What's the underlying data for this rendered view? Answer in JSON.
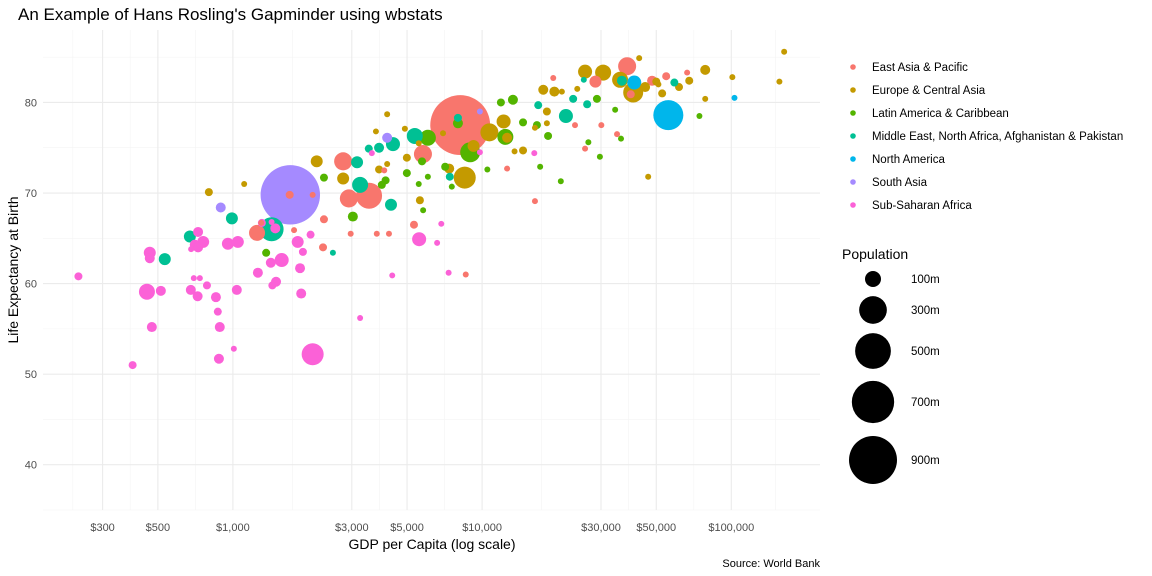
{
  "chart_data": {
    "type": "scatter",
    "title": "An Example of Hans Rosling's Gapminder using wbstats",
    "xlabel": "GDP per Capita (log scale)",
    "ylabel": "Life Expectancy at Birth",
    "caption": "Source: World Bank",
    "x_scale": "log",
    "xlim": [
      173,
      227000
    ],
    "ylim": [
      35,
      88
    ],
    "x_ticks": [
      300,
      500,
      1000,
      3000,
      5000,
      10000,
      30000,
      50000,
      100000
    ],
    "x_tick_labels": [
      "$300",
      "$500",
      "$1,000",
      "$3,000",
      "$5,000",
      "$10,000",
      "$30,000",
      "$50,000",
      "$100,000"
    ],
    "y_ticks": [
      40,
      50,
      60,
      70,
      80
    ],
    "y_tick_labels": [
      "40",
      "50",
      "60",
      "70",
      "80"
    ],
    "grid": true,
    "legend_position": "right",
    "color_legend": {
      "regions": [
        {
          "name": "East Asia & Pacific",
          "color": "#F8766D"
        },
        {
          "name": "Europe & Central Asia",
          "color": "#C49A00"
        },
        {
          "name": "Latin America & Caribbean",
          "color": "#53B400"
        },
        {
          "name": "Middle East, North Africa, Afghanistan & Pakistan",
          "color": "#00C094"
        },
        {
          "name": "North America",
          "color": "#00B6EB"
        },
        {
          "name": "South Asia",
          "color": "#A58AFF"
        },
        {
          "name": "Sub-Saharan Africa",
          "color": "#FB61D7"
        }
      ]
    },
    "size_legend": {
      "title": "Population",
      "values_m": [
        100,
        300,
        500,
        700,
        900
      ],
      "labels": [
        "100m",
        "300m",
        "500m",
        "700m",
        "900m"
      ]
    },
    "series": [
      {
        "name": "Sub-Saharan Africa",
        "points": [
          [
            240,
            60.8,
            25
          ],
          [
            452,
            59.1,
            100
          ],
          [
            514,
            59.2,
            39
          ],
          [
            473,
            55.2,
            39
          ],
          [
            396,
            51.0,
            25
          ],
          [
            464,
            63.4,
            56
          ],
          [
            464,
            62.8,
            39
          ],
          [
            678,
            59.3,
            39
          ],
          [
            722,
            58.6,
            39
          ],
          [
            697,
            60.6,
            14
          ],
          [
            737,
            60.6,
            14
          ],
          [
            787,
            59.8,
            25
          ],
          [
            855,
            58.5,
            39
          ],
          [
            870,
            56.9,
            25
          ],
          [
            879,
            51.7,
            39
          ],
          [
            886,
            55.2,
            39
          ],
          [
            1037,
            59.3,
            39
          ],
          [
            1009,
            52.8,
            14
          ],
          [
            703,
            64.3,
            39
          ],
          [
            725,
            64.0,
            39
          ],
          [
            760,
            64.6,
            56
          ],
          [
            725,
            65.7,
            39
          ],
          [
            680,
            63.8,
            14
          ],
          [
            955,
            64.4,
            56
          ],
          [
            1047,
            64.6,
            56
          ],
          [
            1260,
            61.2,
            39
          ],
          [
            1307,
            66.7,
            25
          ],
          [
            1420,
            62.3,
            39
          ],
          [
            1570,
            62.6,
            77
          ],
          [
            1820,
            64.6,
            56
          ],
          [
            1860,
            61.7,
            39
          ],
          [
            1910,
            63.5,
            25
          ],
          [
            2050,
            65.4,
            25
          ],
          [
            1880,
            58.9,
            39
          ],
          [
            1490,
            60.2,
            39
          ],
          [
            1440,
            59.8,
            25
          ],
          [
            2090,
            52.2,
            189
          ],
          [
            3240,
            56.2,
            14
          ],
          [
            5590,
            64.9,
            77
          ],
          [
            6600,
            64.5,
            14
          ],
          [
            4360,
            60.9,
            14
          ],
          [
            7340,
            61.2,
            14
          ],
          [
            6860,
            66.6,
            14
          ],
          [
            3610,
            74.4,
            14
          ],
          [
            9800,
            74.5,
            14
          ],
          [
            16200,
            74.4,
            14
          ],
          [
            1430,
            66.8,
            14
          ],
          [
            1480,
            66.1,
            39
          ]
        ]
      },
      {
        "name": "East Asia & Pacific",
        "points": [
          [
            8170,
            77.5,
            1400
          ],
          [
            1690,
            69.8,
            25
          ],
          [
            2090,
            69.8,
            14
          ],
          [
            1250,
            65.6,
            100
          ],
          [
            1300,
            66.7,
            14
          ],
          [
            1760,
            65.9,
            14
          ],
          [
            2300,
            64.0,
            25
          ],
          [
            2320,
            67.1,
            25
          ],
          [
            2770,
            73.5,
            127
          ],
          [
            2920,
            69.4,
            127
          ],
          [
            3520,
            69.7,
            264
          ],
          [
            2970,
            65.5,
            14
          ],
          [
            3780,
            65.5,
            14
          ],
          [
            4230,
            65.5,
            14
          ],
          [
            4050,
            72.5,
            14
          ],
          [
            5330,
            66.5,
            25
          ],
          [
            5790,
            74.3,
            127
          ],
          [
            8600,
            61.0,
            14
          ],
          [
            19300,
            82.7,
            14
          ],
          [
            28500,
            82.3,
            56
          ],
          [
            38200,
            84.0,
            127
          ],
          [
            48100,
            82.4,
            39
          ],
          [
            54800,
            82.9,
            25
          ],
          [
            66500,
            83.3,
            14
          ],
          [
            39500,
            80.9,
            25
          ],
          [
            23600,
            77.5,
            14
          ],
          [
            30100,
            77.5,
            14
          ],
          [
            34800,
            76.5,
            14
          ],
          [
            25900,
            74.9,
            14
          ],
          [
            12600,
            72.7,
            14
          ],
          [
            16300,
            69.1,
            14
          ]
        ]
      },
      {
        "name": "Europe & Central Asia",
        "points": [
          [
            801,
            70.1,
            25
          ],
          [
            1110,
            71.0,
            14
          ],
          [
            2170,
            73.5,
            56
          ],
          [
            2770,
            71.6,
            56
          ],
          [
            4160,
            78.7,
            14
          ],
          [
            3750,
            76.8,
            14
          ],
          [
            4160,
            73.2,
            14
          ],
          [
            3860,
            72.6,
            25
          ],
          [
            4900,
            77.1,
            14
          ],
          [
            4990,
            73.9,
            25
          ],
          [
            5570,
            75.5,
            14
          ],
          [
            6970,
            76.6,
            14
          ],
          [
            5630,
            69.2,
            25
          ],
          [
            7380,
            72.7,
            39
          ],
          [
            8520,
            71.7,
            189
          ],
          [
            9240,
            75.2,
            56
          ],
          [
            10700,
            76.7,
            127
          ],
          [
            12200,
            77.9,
            77
          ],
          [
            12600,
            76.1,
            39
          ],
          [
            13500,
            74.6,
            14
          ],
          [
            14600,
            74.7,
            25
          ],
          [
            16300,
            77.2,
            14
          ],
          [
            18200,
            79.0,
            25
          ],
          [
            17600,
            81.4,
            39
          ],
          [
            19500,
            81.2,
            39
          ],
          [
            20900,
            81.2,
            14
          ],
          [
            24100,
            81.5,
            14
          ],
          [
            25900,
            83.4,
            77
          ],
          [
            30600,
            83.3,
            100
          ],
          [
            35800,
            82.5,
            100
          ],
          [
            40400,
            81.1,
            156
          ],
          [
            45100,
            81.7,
            39
          ],
          [
            42700,
            84.9,
            14
          ],
          [
            50000,
            82.3,
            25
          ],
          [
            52800,
            81.0,
            25
          ],
          [
            51000,
            82.0,
            14
          ],
          [
            61700,
            81.7,
            25
          ],
          [
            67800,
            82.4,
            25
          ],
          [
            78600,
            83.6,
            39
          ],
          [
            78600,
            80.4,
            14
          ],
          [
            101000,
            82.8,
            14
          ],
          [
            156000,
            82.3,
            14
          ],
          [
            163000,
            85.6,
            14
          ],
          [
            46400,
            71.8,
            14
          ],
          [
            18200,
            77.7,
            14
          ]
        ]
      },
      {
        "name": "Latin America & Caribbean",
        "points": [
          [
            1360,
            63.4,
            25
          ],
          [
            2320,
            71.7,
            25
          ],
          [
            3030,
            67.4,
            39
          ],
          [
            3960,
            70.9,
            25
          ],
          [
            4100,
            71.4,
            25
          ],
          [
            4990,
            72.2,
            25
          ],
          [
            5740,
            73.5,
            25
          ],
          [
            6060,
            71.8,
            14
          ],
          [
            5570,
            71.0,
            14
          ],
          [
            5800,
            68.1,
            14
          ],
          [
            6060,
            76.1,
            100
          ],
          [
            7110,
            72.9,
            25
          ],
          [
            7560,
            70.7,
            14
          ],
          [
            8000,
            77.7,
            39
          ],
          [
            8960,
            74.5,
            156
          ],
          [
            11900,
            80.0,
            25
          ],
          [
            13300,
            80.3,
            39
          ],
          [
            14600,
            77.8,
            25
          ],
          [
            12400,
            76.2,
            100
          ],
          [
            10500,
            72.6,
            14
          ],
          [
            17100,
            72.9,
            14
          ],
          [
            18400,
            76.3,
            25
          ],
          [
            16600,
            77.5,
            25
          ],
          [
            26700,
            75.6,
            14
          ],
          [
            29700,
            74.0,
            14
          ],
          [
            20700,
            71.3,
            14
          ],
          [
            28900,
            80.4,
            25
          ],
          [
            34200,
            79.2,
            14
          ],
          [
            36100,
            76.0,
            14
          ],
          [
            74500,
            78.5,
            14
          ]
        ]
      },
      {
        "name": "Middle East, North Africa, Afghanistan & Pakistan",
        "points": [
          [
            533,
            62.7,
            56
          ],
          [
            672,
            65.2,
            56
          ],
          [
            991,
            67.2,
            56
          ],
          [
            1430,
            66.0,
            225
          ],
          [
            2520,
            63.4,
            14
          ],
          [
            3150,
            73.4,
            56
          ],
          [
            3240,
            70.9,
            100
          ],
          [
            3510,
            74.9,
            25
          ],
          [
            3860,
            75.0,
            39
          ],
          [
            4390,
            75.4,
            77
          ],
          [
            4310,
            68.7,
            56
          ],
          [
            5370,
            76.3,
            100
          ],
          [
            7420,
            71.8,
            25
          ],
          [
            8000,
            78.3,
            25
          ],
          [
            16800,
            79.7,
            25
          ],
          [
            21700,
            78.5,
            77
          ],
          [
            23200,
            80.4,
            25
          ],
          [
            26400,
            79.8,
            25
          ],
          [
            25600,
            82.5,
            14
          ],
          [
            36400,
            82.4,
            39
          ],
          [
            59100,
            82.2,
            25
          ]
        ]
      },
      {
        "name": "North America",
        "points": [
          [
            55900,
            78.6,
            352
          ],
          [
            40800,
            82.2,
            77
          ],
          [
            103000,
            80.5,
            14
          ]
        ]
      },
      {
        "name": "South Asia",
        "points": [
          [
            1700,
            69.8,
            1380
          ],
          [
            894,
            68.4,
            39
          ],
          [
            4160,
            76.1,
            39
          ],
          [
            9800,
            79.0,
            14
          ]
        ]
      }
    ]
  }
}
